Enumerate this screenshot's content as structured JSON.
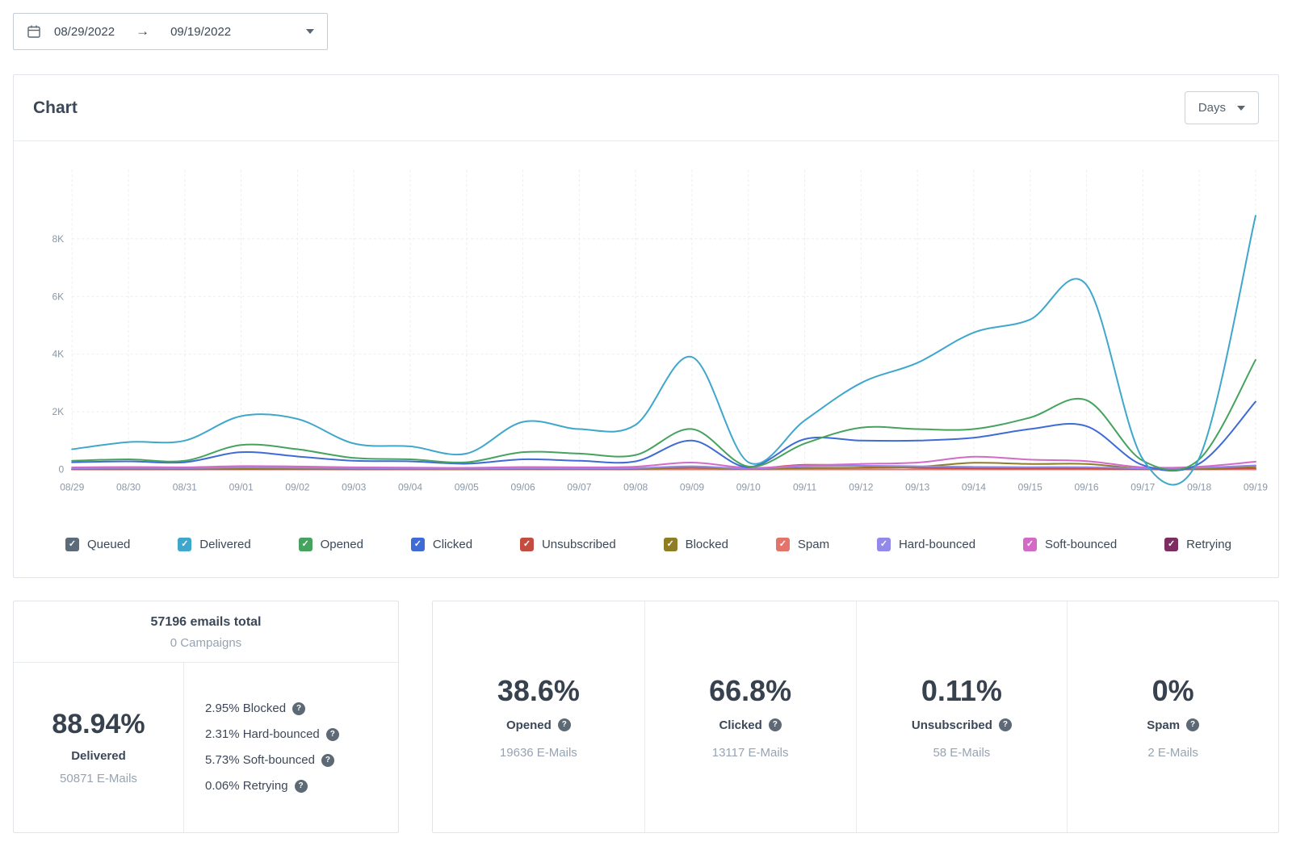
{
  "icons": {
    "arrow_right": "→",
    "help": "?",
    "check": "✓"
  },
  "date_range": {
    "start": "08/29/2022",
    "end": "09/19/2022"
  },
  "chart_card": {
    "title": "Chart",
    "interval": "Days"
  },
  "chart_data": {
    "type": "line",
    "title": "Chart",
    "xlabel": "",
    "ylabel": "",
    "grid": true,
    "legend_position": "bottom",
    "ylim": [
      0,
      10400
    ],
    "yticks": [
      0,
      2000,
      4000,
      6000,
      8000
    ],
    "ytick_labels": [
      "0",
      "2K",
      "4K",
      "6K",
      "8K"
    ],
    "x": [
      "08/29",
      "08/30",
      "08/31",
      "09/01",
      "09/02",
      "09/03",
      "09/04",
      "09/05",
      "09/06",
      "09/07",
      "09/08",
      "09/09",
      "09/10",
      "09/11",
      "09/12",
      "09/13",
      "09/14",
      "09/15",
      "09/16",
      "09/17",
      "09/18",
      "09/19"
    ],
    "series": [
      {
        "name": "Queued",
        "color": "#5c6b7a",
        "checked": true,
        "values": [
          0,
          0,
          0,
          0,
          0,
          0,
          0,
          0,
          0,
          0,
          0,
          0,
          0,
          0,
          0,
          0,
          0,
          0,
          0,
          0,
          0,
          0
        ]
      },
      {
        "name": "Delivered",
        "color": "#3fa7cc",
        "checked": true,
        "values": [
          700,
          950,
          1000,
          1850,
          1750,
          900,
          800,
          550,
          1650,
          1400,
          1550,
          3900,
          250,
          1700,
          3000,
          3700,
          4750,
          5200,
          6400,
          350,
          400,
          8800
        ]
      },
      {
        "name": "Opened",
        "color": "#46a35e",
        "checked": true,
        "values": [
          300,
          350,
          300,
          850,
          700,
          400,
          350,
          250,
          600,
          550,
          500,
          1400,
          100,
          900,
          1450,
          1400,
          1400,
          1800,
          2400,
          300,
          350,
          3800
        ]
      },
      {
        "name": "Clicked",
        "color": "#3e6bd6",
        "checked": true,
        "values": [
          250,
          280,
          250,
          600,
          450,
          300,
          280,
          200,
          350,
          300,
          280,
          1000,
          80,
          1050,
          1000,
          1000,
          1100,
          1400,
          1500,
          150,
          200,
          2350
        ]
      },
      {
        "name": "Unsubscribed",
        "color": "#c44d42",
        "checked": true,
        "values": [
          5,
          5,
          5,
          10,
          10,
          5,
          5,
          5,
          10,
          10,
          10,
          60,
          20,
          160,
          120,
          60,
          40,
          30,
          30,
          10,
          10,
          50
        ]
      },
      {
        "name": "Blocked",
        "color": "#8f7d26",
        "checked": true,
        "values": [
          15,
          20,
          15,
          30,
          25,
          15,
          15,
          10,
          20,
          20,
          25,
          70,
          15,
          50,
          60,
          90,
          230,
          190,
          190,
          25,
          25,
          110
        ]
      },
      {
        "name": "Spam",
        "color": "#e4736b",
        "checked": true,
        "values": [
          0,
          0,
          0,
          0,
          0,
          0,
          0,
          0,
          0,
          0,
          0,
          0,
          0,
          0,
          0,
          0,
          0,
          0,
          0,
          0,
          0,
          0
        ]
      },
      {
        "name": "Hard-bounced",
        "color": "#9289ea",
        "checked": true,
        "values": [
          40,
          50,
          45,
          70,
          60,
          45,
          40,
          30,
          45,
          40,
          45,
          110,
          30,
          110,
          130,
          110,
          90,
          80,
          80,
          40,
          60,
          140
        ]
      },
      {
        "name": "Soft-bounced",
        "color": "#d36bc6",
        "checked": true,
        "values": [
          70,
          85,
          75,
          115,
          105,
          75,
          65,
          55,
          85,
          75,
          95,
          240,
          55,
          140,
          190,
          240,
          440,
          340,
          290,
          75,
          95,
          270
        ]
      },
      {
        "name": "Retrying",
        "color": "#7e2d62",
        "checked": true,
        "values": [
          0,
          0,
          0,
          0,
          0,
          0,
          0,
          0,
          0,
          0,
          0,
          0,
          0,
          0,
          0,
          0,
          0,
          0,
          0,
          0,
          0,
          0
        ]
      }
    ]
  },
  "summary": {
    "total_title": "57196 emails total",
    "campaigns": "0 Campaigns",
    "delivered": {
      "percent": "88.94%",
      "label": "Delivered",
      "count": "50871 E-Mails"
    },
    "breakdown": [
      {
        "text": "2.95% Blocked"
      },
      {
        "text": "2.31% Hard-bounced"
      },
      {
        "text": "5.73% Soft-bounced"
      },
      {
        "text": "0.06% Retrying"
      }
    ]
  },
  "stat_cards": [
    {
      "percent": "38.6%",
      "label": "Opened",
      "count": "19636 E-Mails"
    },
    {
      "percent": "66.8%",
      "label": "Clicked",
      "count": "13117 E-Mails"
    },
    {
      "percent": "0.11%",
      "label": "Unsubscribed",
      "count": "58 E-Mails"
    },
    {
      "percent": "0%",
      "label": "Spam",
      "count": "2 E-Mails"
    }
  ]
}
